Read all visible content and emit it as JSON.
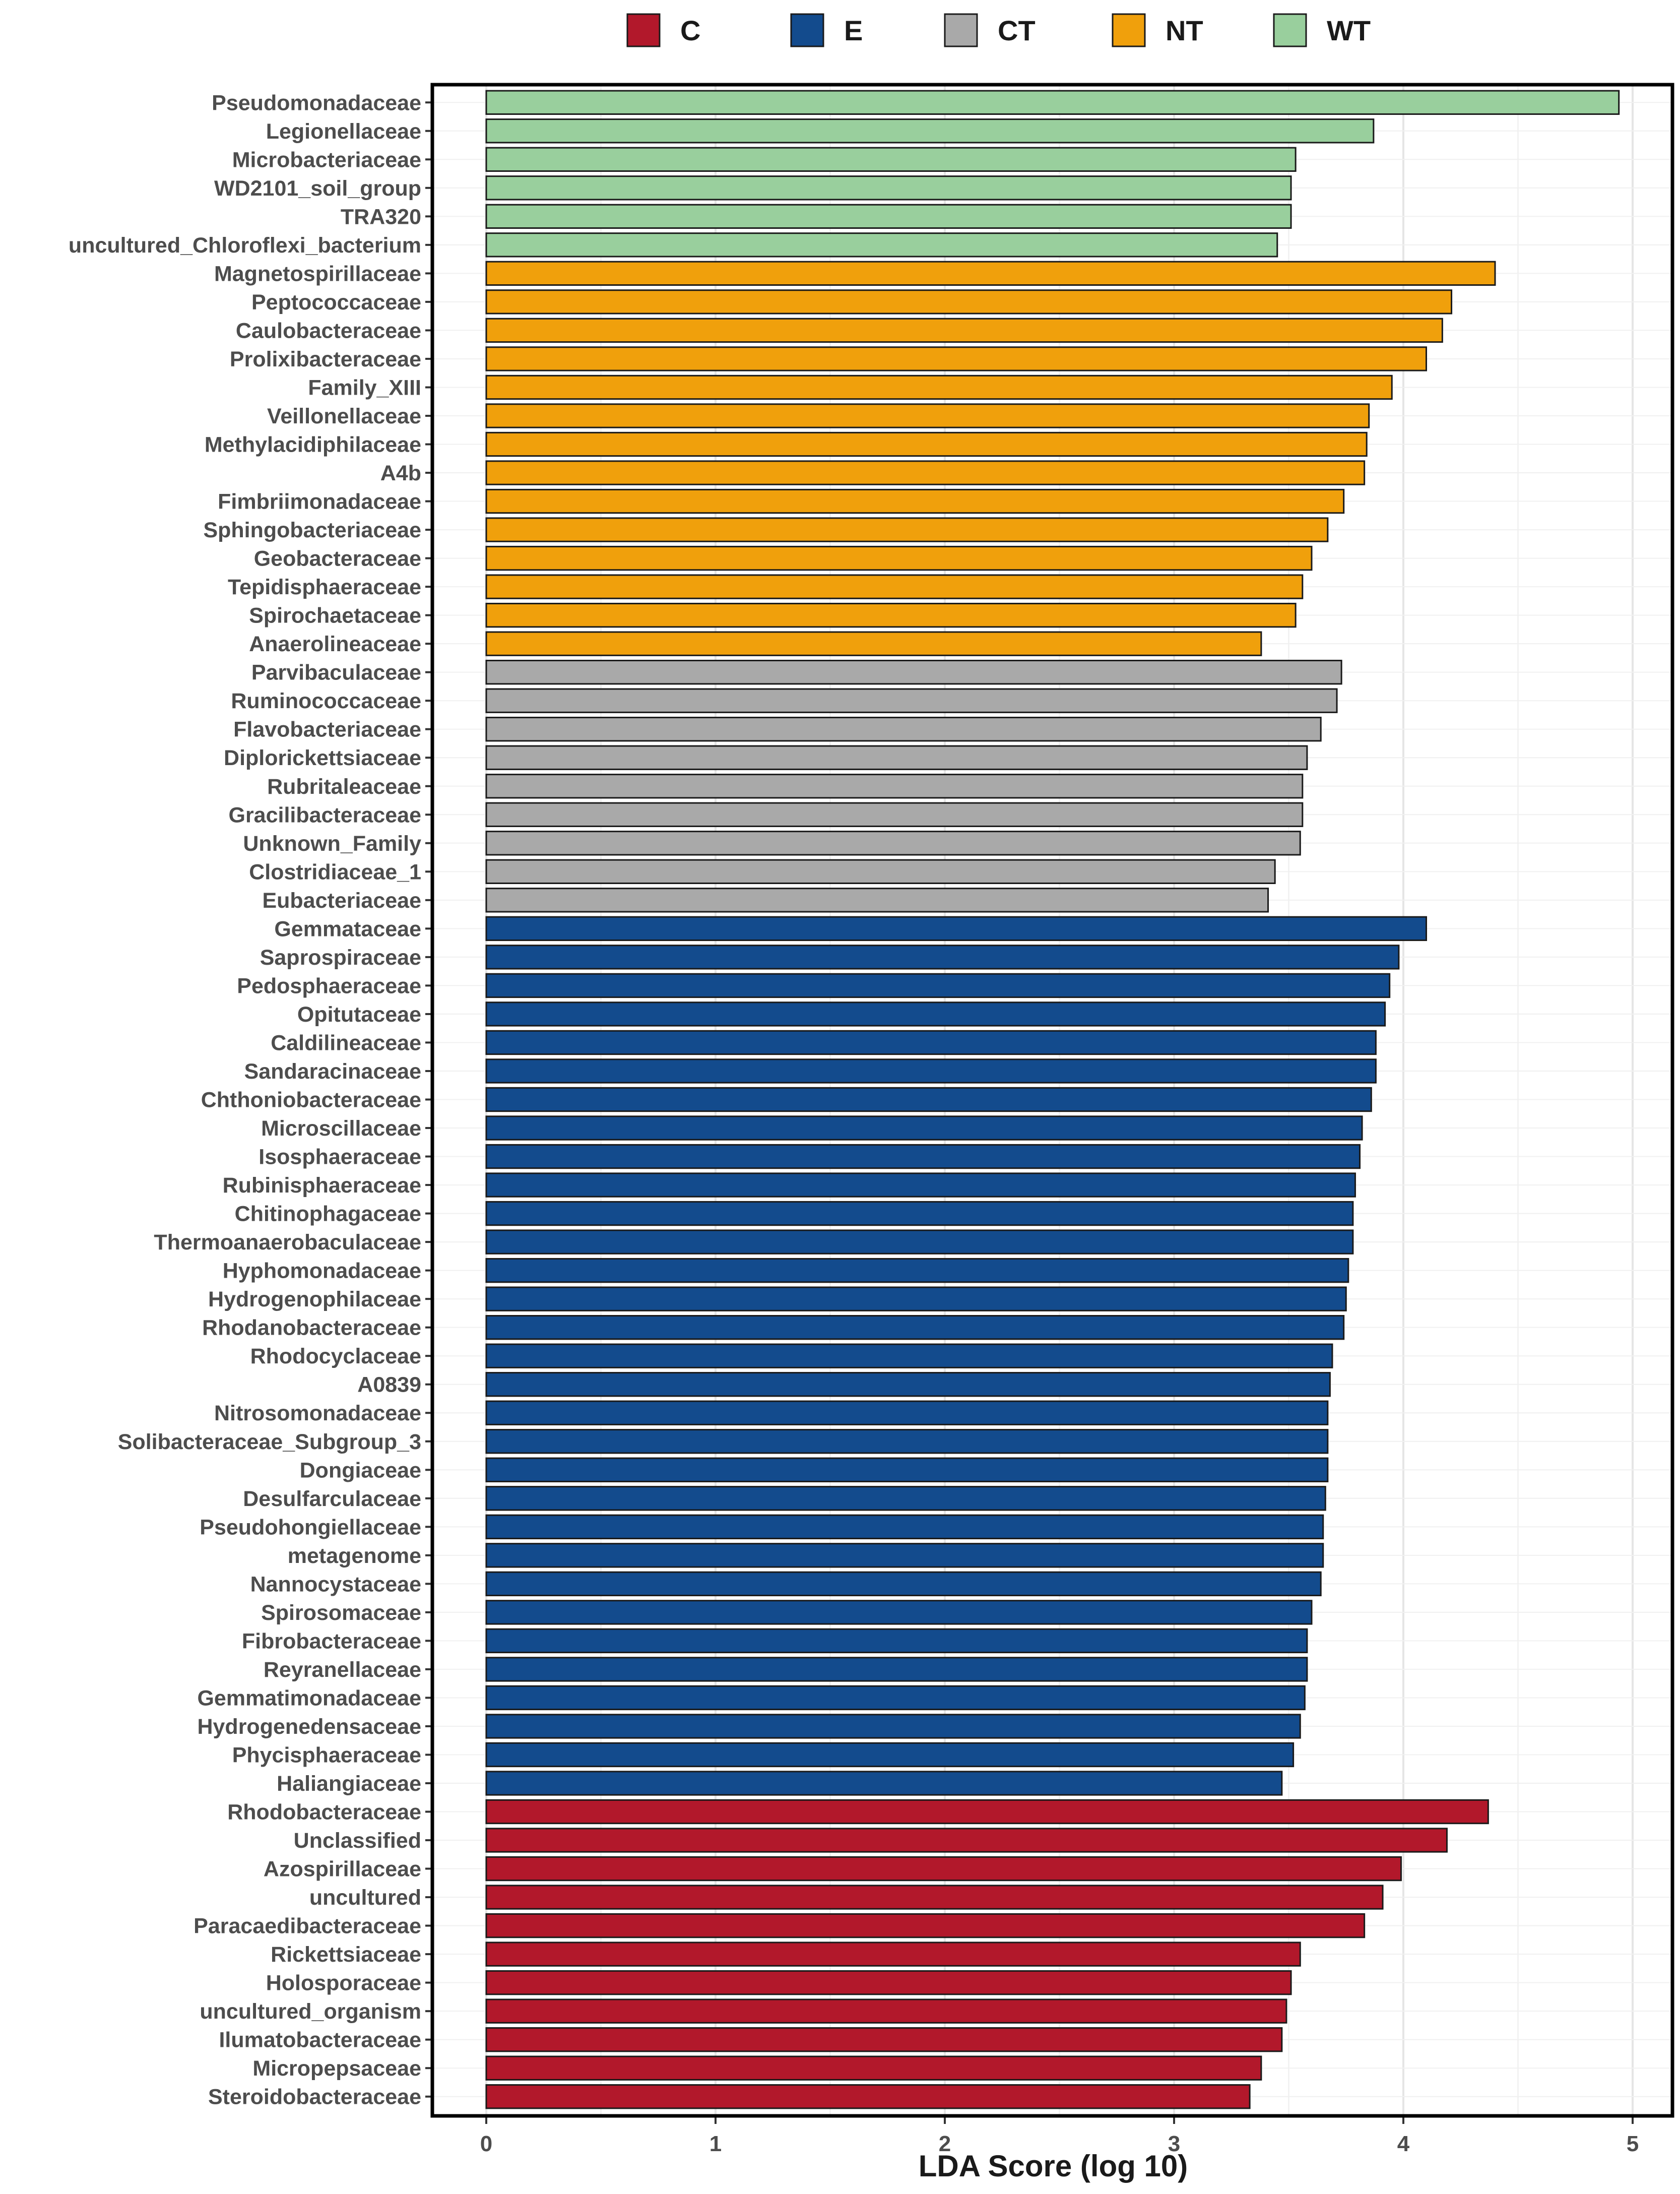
{
  "chart_data": {
    "type": "bar",
    "orientation": "horizontal",
    "xlabel": "LDA Score (log 10)",
    "ylabel": "",
    "xlim": [
      0,
      5.1
    ],
    "xticks": [
      "0",
      "1",
      "2",
      "3",
      "4",
      "5"
    ],
    "grid": true,
    "legend_position": "top",
    "groups": [
      {
        "key": "C",
        "name": "C",
        "color": "#b2182b"
      },
      {
        "key": "E",
        "name": "E",
        "color": "#134b8d"
      },
      {
        "key": "CT",
        "name": "CT",
        "color": "#a9a9a9"
      },
      {
        "key": "NT",
        "name": "NT",
        "color": "#f0a00c"
      },
      {
        "key": "WT",
        "name": "WT",
        "color": "#99cf9d"
      }
    ],
    "bars": [
      {
        "label": "Pseudomonadaceae",
        "value": 4.94,
        "group": "WT"
      },
      {
        "label": "Legionellaceae",
        "value": 3.87,
        "group": "WT"
      },
      {
        "label": "Microbacteriaceae",
        "value": 3.53,
        "group": "WT"
      },
      {
        "label": "WD2101_soil_group",
        "value": 3.51,
        "group": "WT"
      },
      {
        "label": "TRA320",
        "value": 3.51,
        "group": "WT"
      },
      {
        "label": "uncultured_Chloroflexi_bacterium",
        "value": 3.45,
        "group": "WT"
      },
      {
        "label": "Magnetospirillaceae",
        "value": 4.4,
        "group": "NT"
      },
      {
        "label": "Peptococcaceae",
        "value": 4.21,
        "group": "NT"
      },
      {
        "label": "Caulobacteraceae",
        "value": 4.17,
        "group": "NT"
      },
      {
        "label": "Prolixibacteraceae",
        "value": 4.1,
        "group": "NT"
      },
      {
        "label": "Family_XIII",
        "value": 3.95,
        "group": "NT"
      },
      {
        "label": "Veillonellaceae",
        "value": 3.85,
        "group": "NT"
      },
      {
        "label": "Methylacidiphilaceae",
        "value": 3.84,
        "group": "NT"
      },
      {
        "label": "A4b",
        "value": 3.83,
        "group": "NT"
      },
      {
        "label": "Fimbriimonadaceae",
        "value": 3.74,
        "group": "NT"
      },
      {
        "label": "Sphingobacteriaceae",
        "value": 3.67,
        "group": "NT"
      },
      {
        "label": "Geobacteraceae",
        "value": 3.6,
        "group": "NT"
      },
      {
        "label": "Tepidisphaeraceae",
        "value": 3.56,
        "group": "NT"
      },
      {
        "label": "Spirochaetaceae",
        "value": 3.53,
        "group": "NT"
      },
      {
        "label": "Anaerolineaceae",
        "value": 3.38,
        "group": "NT"
      },
      {
        "label": "Parvibaculaceae",
        "value": 3.73,
        "group": "CT"
      },
      {
        "label": "Ruminococcaceae",
        "value": 3.71,
        "group": "CT"
      },
      {
        "label": "Flavobacteriaceae",
        "value": 3.64,
        "group": "CT"
      },
      {
        "label": "Diplorickettsiaceae",
        "value": 3.58,
        "group": "CT"
      },
      {
        "label": "Rubritaleaceae",
        "value": 3.56,
        "group": "CT"
      },
      {
        "label": "Gracilibacteraceae",
        "value": 3.56,
        "group": "CT"
      },
      {
        "label": "Unknown_Family",
        "value": 3.55,
        "group": "CT"
      },
      {
        "label": "Clostridiaceae_1",
        "value": 3.44,
        "group": "CT"
      },
      {
        "label": "Eubacteriaceae",
        "value": 3.41,
        "group": "CT"
      },
      {
        "label": "Gemmataceae",
        "value": 4.1,
        "group": "E"
      },
      {
        "label": "Saprospiraceae",
        "value": 3.98,
        "group": "E"
      },
      {
        "label": "Pedosphaeraceae",
        "value": 3.94,
        "group": "E"
      },
      {
        "label": "Opitutaceae",
        "value": 3.92,
        "group": "E"
      },
      {
        "label": "Caldilineaceae",
        "value": 3.88,
        "group": "E"
      },
      {
        "label": "Sandaracinaceae",
        "value": 3.88,
        "group": "E"
      },
      {
        "label": "Chthoniobacteraceae",
        "value": 3.86,
        "group": "E"
      },
      {
        "label": "Microscillaceae",
        "value": 3.82,
        "group": "E"
      },
      {
        "label": "Isosphaeraceae",
        "value": 3.81,
        "group": "E"
      },
      {
        "label": "Rubinisphaeraceae",
        "value": 3.79,
        "group": "E"
      },
      {
        "label": "Chitinophagaceae",
        "value": 3.78,
        "group": "E"
      },
      {
        "label": "Thermoanaerobaculaceae",
        "value": 3.78,
        "group": "E"
      },
      {
        "label": "Hyphomonadaceae",
        "value": 3.76,
        "group": "E"
      },
      {
        "label": "Hydrogenophilaceae",
        "value": 3.75,
        "group": "E"
      },
      {
        "label": "Rhodanobacteraceae",
        "value": 3.74,
        "group": "E"
      },
      {
        "label": "Rhodocyclaceae",
        "value": 3.69,
        "group": "E"
      },
      {
        "label": "A0839",
        "value": 3.68,
        "group": "E"
      },
      {
        "label": "Nitrosomonadaceae",
        "value": 3.67,
        "group": "E"
      },
      {
        "label": "Solibacteraceae_Subgroup_3",
        "value": 3.67,
        "group": "E"
      },
      {
        "label": "Dongiaceae",
        "value": 3.67,
        "group": "E"
      },
      {
        "label": "Desulfarculaceae",
        "value": 3.66,
        "group": "E"
      },
      {
        "label": "Pseudohongiellaceae",
        "value": 3.65,
        "group": "E"
      },
      {
        "label": "metagenome",
        "value": 3.65,
        "group": "E"
      },
      {
        "label": "Nannocystaceae",
        "value": 3.64,
        "group": "E"
      },
      {
        "label": "Spirosomaceae",
        "value": 3.6,
        "group": "E"
      },
      {
        "label": "Fibrobacteraceae",
        "value": 3.58,
        "group": "E"
      },
      {
        "label": "Reyranellaceae",
        "value": 3.58,
        "group": "E"
      },
      {
        "label": "Gemmatimonadaceae",
        "value": 3.57,
        "group": "E"
      },
      {
        "label": "Hydrogenedensaceae",
        "value": 3.55,
        "group": "E"
      },
      {
        "label": "Phycisphaeraceae",
        "value": 3.52,
        "group": "E"
      },
      {
        "label": "Haliangiaceae",
        "value": 3.47,
        "group": "E"
      },
      {
        "label": "Rhodobacteraceae",
        "value": 4.37,
        "group": "C"
      },
      {
        "label": "Unclassified",
        "value": 4.19,
        "group": "C"
      },
      {
        "label": "Azospirillaceae",
        "value": 3.99,
        "group": "C"
      },
      {
        "label": "uncultured",
        "value": 3.91,
        "group": "C"
      },
      {
        "label": "Paracaedibacteraceae",
        "value": 3.83,
        "group": "C"
      },
      {
        "label": "Rickettsiaceae",
        "value": 3.55,
        "group": "C"
      },
      {
        "label": "Holosporaceae",
        "value": 3.51,
        "group": "C"
      },
      {
        "label": "uncultured_organism",
        "value": 3.49,
        "group": "C"
      },
      {
        "label": "Ilumatobacteraceae",
        "value": 3.47,
        "group": "C"
      },
      {
        "label": "Micropepsaceae",
        "value": 3.38,
        "group": "C"
      },
      {
        "label": "Steroidobacteraceae",
        "value": 3.33,
        "group": "C"
      }
    ]
  }
}
